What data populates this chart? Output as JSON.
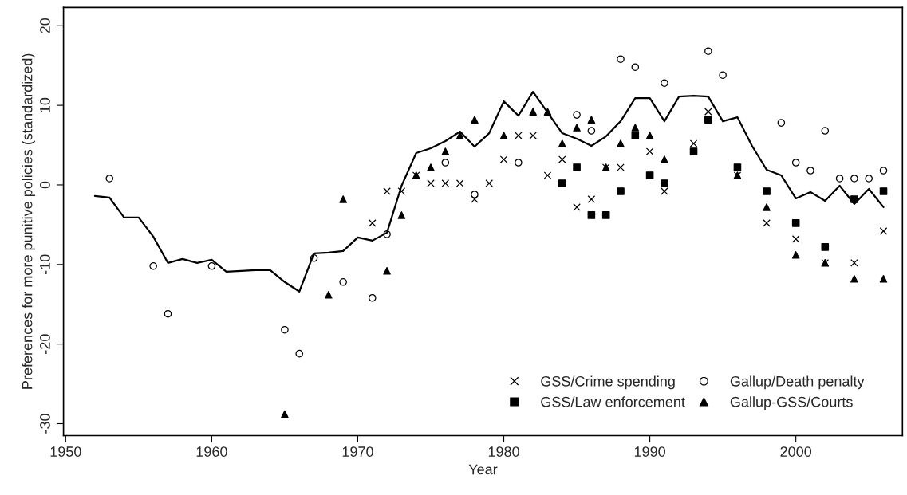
{
  "chart_data": {
    "type": "scatter",
    "xlabel": "Year",
    "ylabel": "Preferences for more punitive policies (standardized)",
    "xlim": [
      1949.85,
      2007.3
    ],
    "ylim": [
      -31.5,
      22.3
    ],
    "xticks": [
      1950,
      1960,
      1970,
      1980,
      1990,
      2000
    ],
    "yticks": [
      -30,
      -20,
      -10,
      0,
      10,
      20
    ],
    "grid": false,
    "legend": "bottom right",
    "series": [
      {
        "type": "line",
        "color": "#000000",
        "marker": "none",
        "line_style": "solid",
        "x": [
          1952,
          1953,
          1954,
          1955,
          1956,
          1957,
          1958,
          1959,
          1960,
          1961,
          1962,
          1963,
          1964,
          1965,
          1966,
          1967,
          1968,
          1969,
          1970,
          1971,
          1972,
          1973,
          1974,
          1975,
          1976,
          1977,
          1978,
          1979,
          1980,
          1981,
          1982,
          1983,
          1984,
          1985,
          1986,
          1987,
          1988,
          1989,
          1990,
          1991,
          1992,
          1993,
          1994,
          1995,
          1996,
          1997,
          1998,
          1999,
          2000,
          2001,
          2002,
          2003,
          2004,
          2005,
          2006
        ],
        "values": [
          -1.4,
          -1.6,
          -4.1,
          -4.1,
          -6.5,
          -9.8,
          -9.3,
          -9.8,
          -9.4,
          -10.9,
          -10.8,
          -10.7,
          -10.7,
          -12.2,
          -13.4,
          -8.6,
          -8.5,
          -8.3,
          -6.6,
          -7.0,
          -6.0,
          -0.1,
          4.0,
          4.6,
          5.5,
          6.7,
          4.8,
          6.5,
          10.5,
          8.7,
          11.7,
          9.1,
          6.5,
          5.8,
          4.9,
          6.1,
          8.0,
          10.9,
          10.9,
          8.0,
          11.1,
          11.2,
          11.1,
          8.0,
          8.5,
          4.9,
          1.9,
          1.2,
          -1.7,
          -0.9,
          -2.0,
          -0.1,
          -2.4,
          -0.5,
          -2.8
        ]
      },
      {
        "name": "GSS/Crime spending",
        "color": "#000000",
        "marker": "cross",
        "x": [
          1971,
          1972,
          1973,
          1974,
          1975,
          1976,
          1977,
          1978,
          1979,
          1980,
          1981,
          1982,
          1983,
          1984,
          1985,
          1986,
          1987,
          1988,
          1990,
          1991,
          1993,
          1994,
          1996,
          1998,
          2000,
          2002,
          2004,
          2006
        ],
        "values": [
          -4.8,
          -0.8,
          -0.8,
          1.2,
          0.2,
          0.2,
          0.2,
          -1.8,
          0.2,
          3.2,
          6.2,
          6.2,
          1.2,
          3.2,
          -2.8,
          -1.8,
          2.2,
          2.2,
          4.2,
          -0.8,
          5.2,
          9.2,
          1.2,
          -4.8,
          -6.8,
          -9.8,
          -9.8,
          -5.8
        ]
      },
      {
        "name": "GSS/Law enforcement",
        "color": "#000000",
        "marker": "square",
        "x": [
          1984,
          1985,
          1986,
          1987,
          1988,
          1989,
          1990,
          1991,
          1993,
          1994,
          1996,
          1998,
          2000,
          2002,
          2004,
          2006
        ],
        "values": [
          0.2,
          2.2,
          -3.8,
          -3.8,
          -0.8,
          6.2,
          1.2,
          0.2,
          4.2,
          8.2,
          2.2,
          -0.8,
          -4.8,
          -7.8,
          -1.8,
          -0.8
        ]
      },
      {
        "name": "Gallup/Death penalty",
        "color": "#000000",
        "marker": "circle",
        "x": [
          1953,
          1956,
          1957,
          1960,
          1965,
          1966,
          1967,
          1969,
          1971,
          1972,
          1976,
          1978,
          1981,
          1985,
          1986,
          1988,
          1989,
          1991,
          1994,
          1995,
          1999,
          2000,
          2001,
          2002,
          2003,
          2004,
          2005,
          2006
        ],
        "values": [
          0.8,
          -10.2,
          -16.2,
          -10.2,
          -18.2,
          -21.2,
          -9.2,
          -12.2,
          -14.2,
          -6.2,
          2.8,
          -1.2,
          2.8,
          8.8,
          6.8,
          15.8,
          14.8,
          12.8,
          16.8,
          13.8,
          7.8,
          2.8,
          1.8,
          6.8,
          0.8,
          0.8,
          0.8,
          1.8
        ]
      },
      {
        "name": "Gallup-GSS/Courts",
        "color": "#000000",
        "marker": "triangle",
        "x": [
          1965,
          1968,
          1969,
          1972,
          1973,
          1974,
          1975,
          1976,
          1977,
          1978,
          1980,
          1982,
          1983,
          1984,
          1985,
          1986,
          1987,
          1988,
          1989,
          1990,
          1991,
          1996,
          1998,
          2000,
          2002,
          2004,
          2006
        ],
        "values": [
          -28.8,
          -13.8,
          -1.8,
          -10.8,
          -3.8,
          1.2,
          2.2,
          4.2,
          6.2,
          8.2,
          6.2,
          9.2,
          9.2,
          5.2,
          7.2,
          8.2,
          2.2,
          5.2,
          7.2,
          6.2,
          3.2,
          1.2,
          -2.8,
          -8.8,
          -9.8,
          -11.8,
          -11.8
        ]
      }
    ]
  }
}
